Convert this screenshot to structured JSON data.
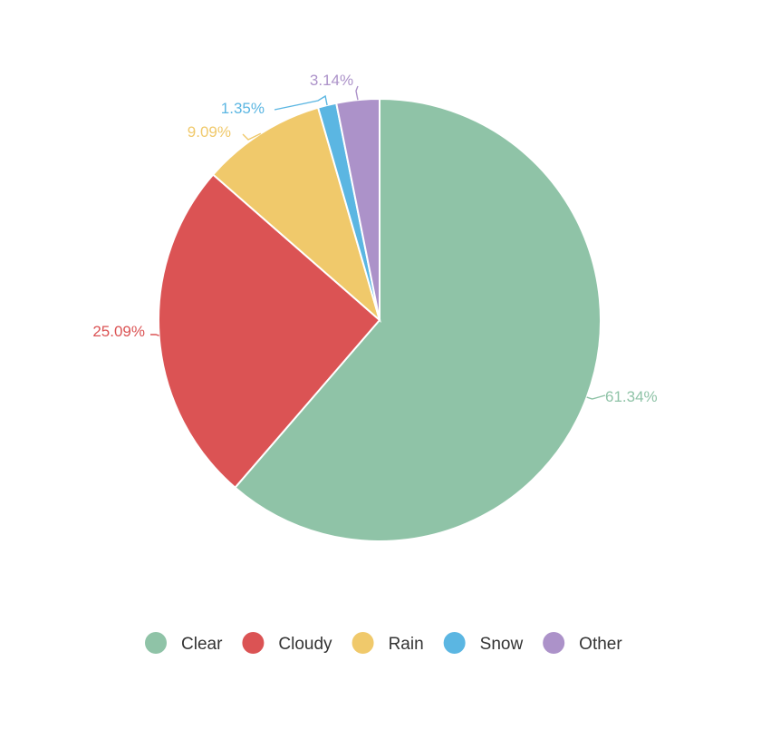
{
  "chart_data": {
    "type": "pie",
    "title": "",
    "categories": [
      "Clear",
      "Cloudy",
      "Rain",
      "Snow",
      "Other"
    ],
    "values": [
      61.34,
      25.09,
      9.09,
      1.35,
      3.14
    ],
    "labels": [
      "61.34%",
      "25.09%",
      "9.09%",
      "1.35%",
      "3.14%"
    ],
    "colors": [
      "#8fc3a7",
      "#db5354",
      "#f0c96b",
      "#5bb6e2",
      "#ac92c9"
    ],
    "start_angle_deg": 0,
    "direction": "clockwise",
    "legend_position": "bottom-center"
  }
}
